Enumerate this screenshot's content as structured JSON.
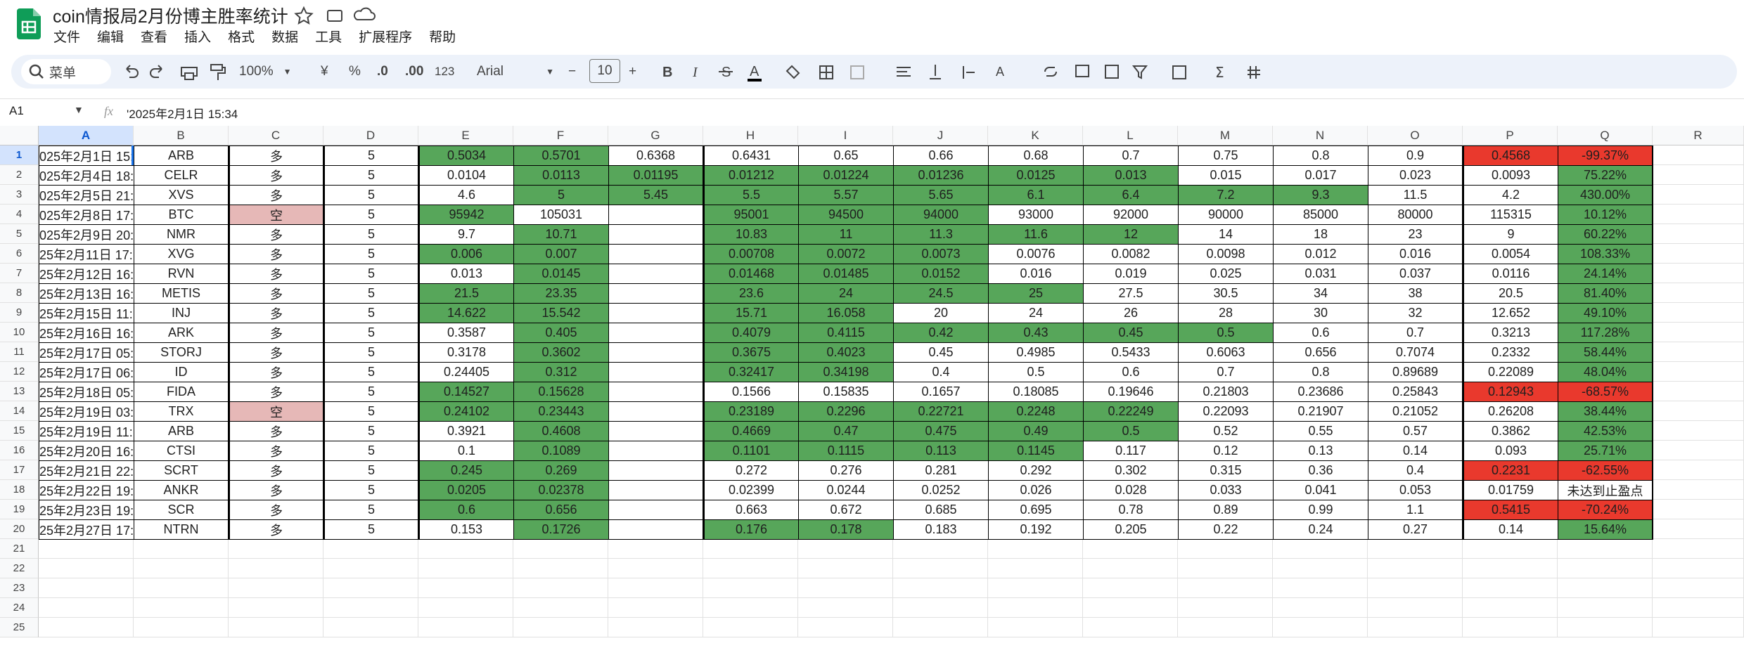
{
  "app": {
    "title": "coin情报局2月份博主胜率统计",
    "menu": [
      "文件",
      "编辑",
      "查看",
      "插入",
      "格式",
      "数据",
      "工具",
      "扩展程序",
      "帮助"
    ]
  },
  "toolbar": {
    "search": "菜单",
    "zoom": "100%",
    "currency": "¥",
    "percent": "%",
    "decrease_decimal": ".0",
    "increase_decimal": ".00",
    "number_format": "123",
    "font": "Arial",
    "font_size": "10"
  },
  "formula_bar": {
    "cell": "A1",
    "fx": "fx",
    "content": "'2025年2月1日 15:34"
  },
  "sheet": {
    "columns": [
      "A",
      "B",
      "C",
      "D",
      "E",
      "F",
      "G",
      "H",
      "I",
      "J",
      "K",
      "L",
      "M",
      "N",
      "O",
      "P",
      "Q",
      "R"
    ],
    "row_numbers": [
      1,
      2,
      3,
      4,
      5,
      6,
      7,
      8,
      9,
      10,
      11,
      12,
      13,
      14,
      15,
      16,
      17,
      18,
      19,
      20,
      21,
      22,
      23,
      24,
      25
    ],
    "rows": [
      [
        "025年2月1日 15:3",
        "ARB",
        "多",
        "5",
        {
          "text": "0.5034",
          "fill": "#57a65a"
        },
        {
          "text": "0.5701",
          "fill": "#57a65a"
        },
        "0.6368",
        "0.6431",
        "0.65",
        "0.66",
        "0.68",
        "0.7",
        "0.75",
        "0.8",
        "0.9",
        {
          "text": "0.4568",
          "fill": "#e9392d"
        },
        {
          "text": "-99.37%",
          "fill": "#e9392d"
        }
      ],
      [
        "025年2月4日 18:2",
        "CELR",
        "多",
        "5",
        "0.0104",
        {
          "text": "0.0113",
          "fill": "#57a65a"
        },
        {
          "text": "0.01195",
          "fill": "#57a65a"
        },
        {
          "text": "0.01212",
          "fill": "#57a65a"
        },
        {
          "text": "0.01224",
          "fill": "#57a65a"
        },
        {
          "text": "0.01236",
          "fill": "#57a65a"
        },
        {
          "text": "0.0125",
          "fill": "#57a65a"
        },
        {
          "text": "0.013",
          "fill": "#57a65a"
        },
        "0.015",
        "0.017",
        "0.023",
        "0.0093",
        {
          "text": "75.22%",
          "fill": "#57a65a"
        }
      ],
      [
        "025年2月5日 21:5",
        "XVS",
        "多",
        "5",
        "4.6",
        {
          "text": "5",
          "fill": "#57a65a"
        },
        {
          "text": "5.45",
          "fill": "#57a65a"
        },
        {
          "text": "5.5",
          "fill": "#57a65a"
        },
        {
          "text": "5.57",
          "fill": "#57a65a"
        },
        {
          "text": "5.65",
          "fill": "#57a65a"
        },
        {
          "text": "6.1",
          "fill": "#57a65a"
        },
        {
          "text": "6.4",
          "fill": "#57a65a"
        },
        {
          "text": "7.2",
          "fill": "#57a65a"
        },
        {
          "text": "9.3",
          "fill": "#57a65a"
        },
        "11.5",
        "4.2",
        {
          "text": "430.00%",
          "fill": "#57a65a"
        }
      ],
      [
        "025年2月8日 17:0",
        "BTC",
        {
          "text": "空",
          "fill": "#e6b8b7"
        },
        "5",
        {
          "text": "95942",
          "fill": "#57a65a"
        },
        "105031",
        null,
        {
          "text": "95001",
          "fill": "#57a65a"
        },
        {
          "text": "94500",
          "fill": "#57a65a"
        },
        {
          "text": "94000",
          "fill": "#57a65a"
        },
        "93000",
        "92000",
        "90000",
        "85000",
        "80000",
        "115315",
        {
          "text": "10.12%",
          "fill": "#57a65a"
        }
      ],
      [
        "025年2月9日 20:2",
        "NMR",
        "多",
        "5",
        "9.7",
        {
          "text": "10.71",
          "fill": "#57a65a"
        },
        null,
        {
          "text": "10.83",
          "fill": "#57a65a"
        },
        {
          "text": "11",
          "fill": "#57a65a"
        },
        {
          "text": "11.3",
          "fill": "#57a65a"
        },
        {
          "text": "11.6",
          "fill": "#57a65a"
        },
        {
          "text": "12",
          "fill": "#57a65a"
        },
        "14",
        "18",
        "23",
        "9",
        {
          "text": "60.22%",
          "fill": "#57a65a"
        }
      ],
      [
        "25年2月11日 17:",
        "XVG",
        "多",
        "5",
        {
          "text": "0.006",
          "fill": "#57a65a"
        },
        {
          "text": "0.007",
          "fill": "#57a65a"
        },
        null,
        {
          "text": "0.00708",
          "fill": "#57a65a"
        },
        {
          "text": "0.0072",
          "fill": "#57a65a"
        },
        {
          "text": "0.0073",
          "fill": "#57a65a"
        },
        "0.0076",
        "0.0082",
        "0.0098",
        "0.012",
        "0.016",
        "0.0054",
        {
          "text": "108.33%",
          "fill": "#57a65a"
        }
      ],
      [
        "25年2月12日 16:",
        "RVN",
        "多",
        "5",
        "0.013",
        {
          "text": "0.0145",
          "fill": "#57a65a"
        },
        null,
        {
          "text": "0.01468",
          "fill": "#57a65a"
        },
        {
          "text": "0.01485",
          "fill": "#57a65a"
        },
        {
          "text": "0.0152",
          "fill": "#57a65a"
        },
        "0.016",
        "0.019",
        "0.025",
        "0.031",
        "0.037",
        "0.0116",
        {
          "text": "24.14%",
          "fill": "#57a65a"
        }
      ],
      [
        "25年2月13日 16:",
        "METIS",
        "多",
        "5",
        {
          "text": "21.5",
          "fill": "#57a65a"
        },
        {
          "text": "23.35",
          "fill": "#57a65a"
        },
        null,
        {
          "text": "23.6",
          "fill": "#57a65a"
        },
        {
          "text": "24",
          "fill": "#57a65a"
        },
        {
          "text": "24.5",
          "fill": "#57a65a"
        },
        {
          "text": "25",
          "fill": "#57a65a"
        },
        "27.5",
        "30.5",
        "34",
        "38",
        "20.5",
        {
          "text": "81.40%",
          "fill": "#57a65a"
        }
      ],
      [
        "25年2月15日 11:",
        "INJ",
        "多",
        "5",
        {
          "text": "14.622",
          "fill": "#57a65a"
        },
        {
          "text": "15.542",
          "fill": "#57a65a"
        },
        null,
        {
          "text": "15.71",
          "fill": "#57a65a"
        },
        {
          "text": "16.058",
          "fill": "#57a65a"
        },
        "20",
        "24",
        "26",
        "28",
        "30",
        "32",
        "12.652",
        {
          "text": "49.10%",
          "fill": "#57a65a"
        }
      ],
      [
        "25年2月16日 16:",
        "ARK",
        "多",
        "5",
        "0.3587",
        {
          "text": "0.405",
          "fill": "#57a65a"
        },
        null,
        {
          "text": "0.4079",
          "fill": "#57a65a"
        },
        {
          "text": "0.4115",
          "fill": "#57a65a"
        },
        {
          "text": "0.42",
          "fill": "#57a65a"
        },
        {
          "text": "0.43",
          "fill": "#57a65a"
        },
        {
          "text": "0.45",
          "fill": "#57a65a"
        },
        {
          "text": "0.5",
          "fill": "#57a65a"
        },
        "0.6",
        "0.7",
        "0.3213",
        {
          "text": "117.28%",
          "fill": "#57a65a"
        }
      ],
      [
        "25年2月17日 05:",
        "STORJ",
        "多",
        "5",
        "0.3178",
        {
          "text": "0.3602",
          "fill": "#57a65a"
        },
        null,
        {
          "text": "0.3675",
          "fill": "#57a65a"
        },
        {
          "text": "0.4023",
          "fill": "#57a65a"
        },
        "0.45",
        "0.4985",
        "0.5433",
        "0.6063",
        "0.656",
        "0.7074",
        "0.2332",
        {
          "text": "58.44%",
          "fill": "#57a65a"
        }
      ],
      [
        "25年2月17日 06:",
        "ID",
        "多",
        "5",
        "0.24405",
        {
          "text": "0.312",
          "fill": "#57a65a"
        },
        null,
        {
          "text": "0.32417",
          "fill": "#57a65a"
        },
        {
          "text": "0.34198",
          "fill": "#57a65a"
        },
        "0.4",
        "0.5",
        "0.6",
        "0.7",
        "0.8",
        "0.89689",
        "0.22089",
        {
          "text": "48.04%",
          "fill": "#57a65a"
        }
      ],
      [
        "25年2月18日 05:",
        "FIDA",
        "多",
        "5",
        {
          "text": "0.14527",
          "fill": "#57a65a"
        },
        {
          "text": "0.15628",
          "fill": "#57a65a"
        },
        null,
        "0.1566",
        "0.15835",
        "0.1657",
        "0.18085",
        "0.19646",
        "0.21803",
        "0.23686",
        "0.25843",
        {
          "text": "0.12943",
          "fill": "#e9392d"
        },
        {
          "text": "-68.57%",
          "fill": "#e9392d"
        }
      ],
      [
        "25年2月19日 03:",
        "TRX",
        {
          "text": "空",
          "fill": "#e6b8b7"
        },
        "5",
        {
          "text": "0.24102",
          "fill": "#57a65a"
        },
        {
          "text": "0.23443",
          "fill": "#57a65a"
        },
        null,
        {
          "text": "0.23189",
          "fill": "#57a65a"
        },
        {
          "text": "0.2296",
          "fill": "#57a65a"
        },
        {
          "text": "0.22721",
          "fill": "#57a65a"
        },
        {
          "text": "0.2248",
          "fill": "#57a65a"
        },
        {
          "text": "0.22249",
          "fill": "#57a65a"
        },
        "0.22093",
        "0.21907",
        "0.21052",
        "0.26208",
        {
          "text": "38.44%",
          "fill": "#57a65a"
        }
      ],
      [
        "25年2月19日 11:",
        "ARB",
        "多",
        "5",
        "0.3921",
        {
          "text": "0.4608",
          "fill": "#57a65a"
        },
        null,
        {
          "text": "0.4669",
          "fill": "#57a65a"
        },
        {
          "text": "0.47",
          "fill": "#57a65a"
        },
        {
          "text": "0.475",
          "fill": "#57a65a"
        },
        {
          "text": "0.49",
          "fill": "#57a65a"
        },
        {
          "text": "0.5",
          "fill": "#57a65a"
        },
        "0.52",
        "0.55",
        "0.57",
        "0.3862",
        {
          "text": "42.53%",
          "fill": "#57a65a"
        }
      ],
      [
        "25年2月20日 16:",
        "CTSI",
        "多",
        "5",
        "0.1",
        {
          "text": "0.1089",
          "fill": "#57a65a"
        },
        null,
        {
          "text": "0.1101",
          "fill": "#57a65a"
        },
        {
          "text": "0.1115",
          "fill": "#57a65a"
        },
        {
          "text": "0.113",
          "fill": "#57a65a"
        },
        {
          "text": "0.1145",
          "fill": "#57a65a"
        },
        "0.117",
        "0.12",
        "0.13",
        "0.14",
        "0.093",
        {
          "text": "25.71%",
          "fill": "#57a65a"
        }
      ],
      [
        "25年2月21日 22:",
        "SCRT",
        "多",
        "5",
        {
          "text": "0.245",
          "fill": "#57a65a"
        },
        {
          "text": "0.269",
          "fill": "#57a65a"
        },
        null,
        "0.272",
        "0.276",
        "0.281",
        "0.292",
        "0.302",
        "0.315",
        "0.36",
        "0.4",
        {
          "text": "0.2231",
          "fill": "#e9392d"
        },
        {
          "text": "-62.55%",
          "fill": "#e9392d"
        }
      ],
      [
        "25年2月22日 19:",
        "ANKR",
        "多",
        "5",
        {
          "text": "0.0205",
          "fill": "#57a65a"
        },
        {
          "text": "0.02378",
          "fill": "#57a65a"
        },
        null,
        "0.02399",
        "0.0244",
        "0.0252",
        "0.026",
        "0.028",
        "0.033",
        "0.041",
        "0.053",
        "0.01759",
        "未达到止盈点"
      ],
      [
        "25年2月23日 19:",
        "SCR",
        "多",
        "5",
        {
          "text": "0.6",
          "fill": "#57a65a"
        },
        {
          "text": "0.656",
          "fill": "#57a65a"
        },
        null,
        "0.663",
        "0.672",
        "0.685",
        "0.695",
        "0.78",
        "0.89",
        "0.99",
        "1.1",
        {
          "text": "0.5415",
          "fill": "#e9392d"
        },
        {
          "text": "-70.24%",
          "fill": "#e9392d"
        }
      ],
      [
        "25年2月27日 17:",
        "NTRN",
        "多",
        "5",
        "0.153",
        {
          "text": "0.1726",
          "fill": "#57a65a"
        },
        null,
        {
          "text": "0.176",
          "fill": "#57a65a"
        },
        {
          "text": "0.178",
          "fill": "#57a65a"
        },
        "0.183",
        "0.192",
        "0.205",
        "0.22",
        "0.24",
        "0.27",
        "0.14",
        {
          "text": "15.64%",
          "fill": "#57a65a"
        }
      ]
    ]
  }
}
